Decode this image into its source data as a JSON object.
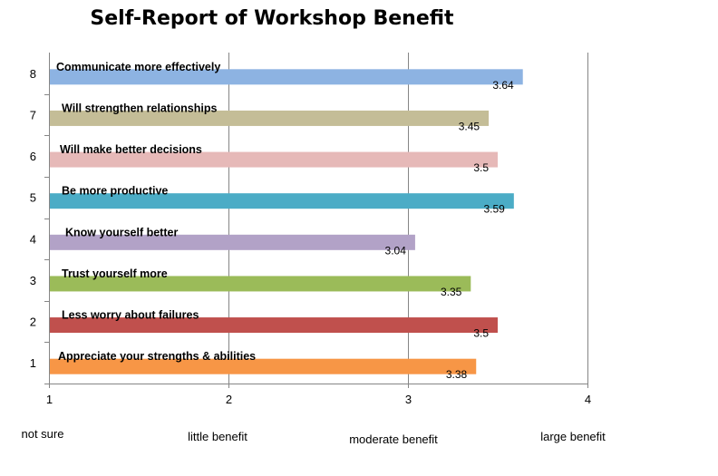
{
  "chart_data": {
    "type": "bar",
    "orientation": "horizontal",
    "title": "Self-Report of Workshop Benefit",
    "y_ticks": [
      "1",
      "2",
      "3",
      "4",
      "5",
      "6",
      "7",
      "8"
    ],
    "bars": [
      {
        "y": 1,
        "label": "Appreciate your strengths & abilities",
        "value": 3.38,
        "value_label": "3.38",
        "color": "#f79646"
      },
      {
        "y": 2,
        "label": "Less worry about failures",
        "value": 3.5,
        "value_label": "3.5",
        "color": "#c0504d"
      },
      {
        "y": 3,
        "label": "Trust yourself more",
        "value": 3.35,
        "value_label": "3.35",
        "color": "#9bbb59"
      },
      {
        "y": 4,
        "label": "Know yourself better",
        "value": 3.04,
        "value_label": "3.04",
        "color": "#b2a2c7"
      },
      {
        "y": 5,
        "label": "Be more productive",
        "value": 3.59,
        "value_label": "3.59",
        "color": "#4bacc6"
      },
      {
        "y": 6,
        "label": "Will make better decisions",
        "value": 3.5,
        "value_label": "3.5",
        "color": "#e6b9b8"
      },
      {
        "y": 7,
        "label": "Will strengthen relationships",
        "value": 3.45,
        "value_label": "3.45",
        "color": "#c4bd97"
      },
      {
        "y": 8,
        "label": "Communicate more effectively",
        "value": 3.64,
        "value_label": "3.64",
        "color": "#8db3e2"
      }
    ],
    "x_ticks": [
      "1",
      "2",
      "3",
      "4"
    ],
    "xlim": [
      1,
      4
    ],
    "x_category_labels": [
      "not sure",
      "little benefit",
      "moderate  benefit",
      "large benefit"
    ],
    "grid": "vertical gridlines",
    "legend": "none"
  }
}
